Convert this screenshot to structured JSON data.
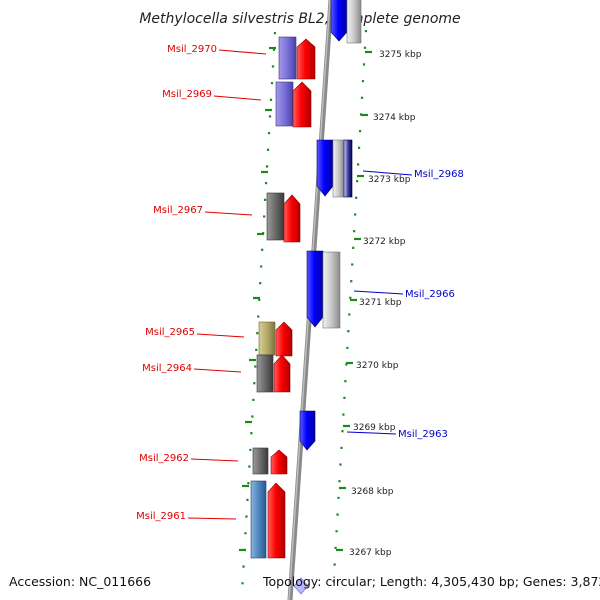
{
  "title": "Methylocella silvestris BL2, complete genome",
  "footer": {
    "accession": "Accession: NC_011666",
    "topology": "Topology: circular; Length: 4,305,430 bp; Genes: 3,872"
  },
  "kbp_ticks": [
    "3275 kbp",
    "3274 kbp",
    "3273 kbp",
    "3272 kbp",
    "3271 kbp",
    "3270 kbp",
    "3269 kbp",
    "3268 kbp",
    "3267 kbp"
  ],
  "left_labels": [
    "Msil_2970",
    "Msil_2969",
    "Msil_2967",
    "Msil_2965",
    "Msil_2964",
    "Msil_2962",
    "Msil_2961"
  ],
  "right_labels": [
    "Msil_2968",
    "Msil_2966",
    "Msil_2963"
  ],
  "colors": {
    "red_gene": "#ff0000",
    "blue_gene": "#0000ff",
    "axis": "#888888",
    "dots": "#1a8a1a",
    "label_left": "#e00000",
    "label_right": "#0000cc"
  }
}
